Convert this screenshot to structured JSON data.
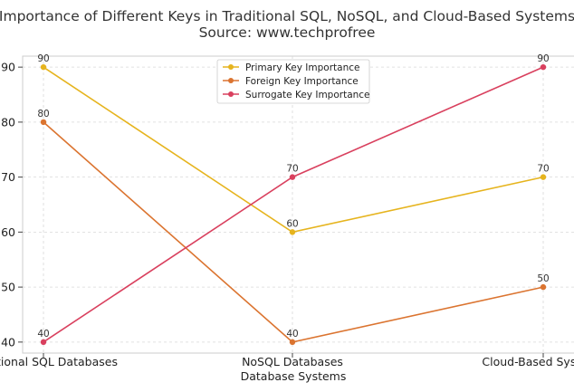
{
  "chart_data": {
    "type": "line",
    "title_line1": "Importance of Different Keys in Traditional SQL, NoSQL, and Cloud-Based Systems",
    "title_line2": "Source: www.techprofree",
    "xlabel": "Database Systems",
    "ylabel": "",
    "categories": [
      "Traditional SQL Databases",
      "NoSQL Databases",
      "Cloud-Based Systems"
    ],
    "ylim": [
      38,
      92
    ],
    "yticks": [
      40,
      50,
      60,
      70,
      80,
      90
    ],
    "grid": true,
    "legend_position": "top-center",
    "series": [
      {
        "name": "Primary Key Importance",
        "values": [
          90,
          60,
          70
        ],
        "color": "#e6b41e"
      },
      {
        "name": "Foreign Key Importance",
        "values": [
          80,
          40,
          50
        ],
        "color": "#db7430"
      },
      {
        "name": "Surrogate Key Importance",
        "values": [
          40,
          70,
          90
        ],
        "color": "#d9405e"
      }
    ]
  }
}
